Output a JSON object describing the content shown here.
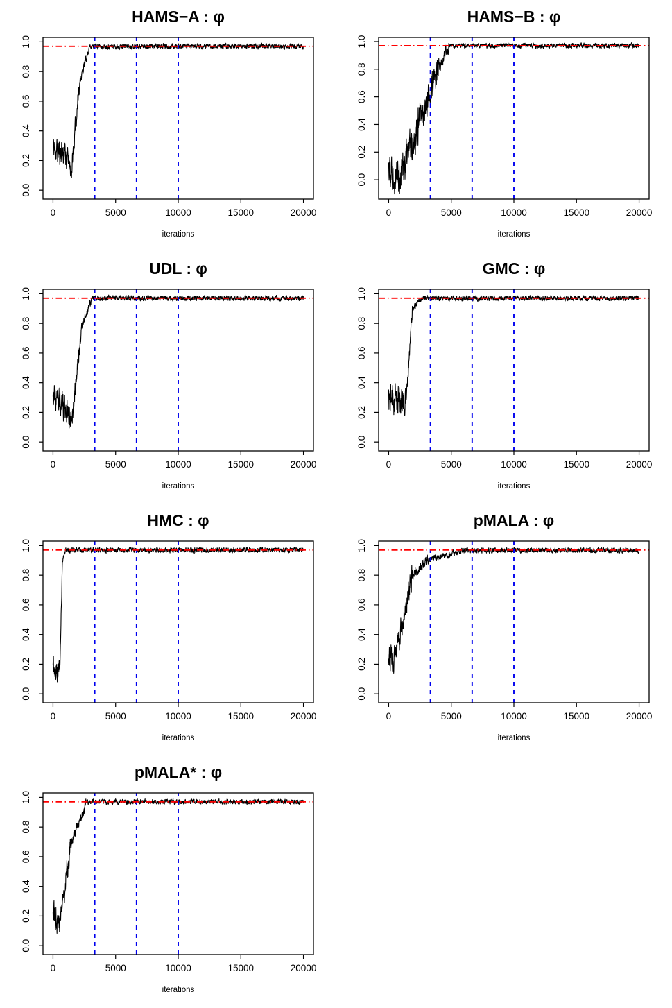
{
  "figure": {
    "description": "MCMC trace plots of parameter phi for seven samplers",
    "phi_symbol": "φ",
    "trace_color": "#000000",
    "reference_line_color": "#ff0000",
    "burnin_line_color": "#0000ee"
  },
  "chart_data": [
    {
      "type": "line",
      "title": "HAMS−A : φ",
      "xlabel": "iterations",
      "ylabel": "",
      "xlim": [
        0,
        20000
      ],
      "ylim": [
        -0.06,
        1.03
      ],
      "xticks": [
        0,
        5000,
        10000,
        15000,
        20000
      ],
      "yticks": [
        0.0,
        0.2,
        0.4,
        0.6,
        0.8,
        1.0
      ],
      "reference_lines": {
        "horizontal": {
          "y": 0.97,
          "color": "#ff0000",
          "style": "dashdot"
        },
        "vertical": {
          "x": [
            3333,
            6667,
            10000
          ],
          "color": "#0000ee",
          "style": "dashed"
        }
      },
      "series": [
        {
          "name": "trace",
          "color": "#000000",
          "seed": 11,
          "segments": [
            [
              0,
              1150,
              0.28,
              0.24,
              0.07
            ],
            [
              1150,
              1450,
              0.24,
              0.1,
              0.04
            ],
            [
              1450,
              2100,
              0.1,
              0.72,
              0.05
            ],
            [
              2100,
              2900,
              0.72,
              0.965,
              0.02
            ],
            [
              2900,
              20000,
              0.97,
              0.97,
              0.012
            ]
          ]
        }
      ]
    },
    {
      "type": "line",
      "title": "HAMS−B : φ",
      "xlabel": "iterations",
      "ylabel": "",
      "xlim": [
        0,
        20000
      ],
      "ylim": [
        -0.14,
        1.03
      ],
      "xticks": [
        0,
        5000,
        10000,
        15000,
        20000
      ],
      "yticks": [
        0.0,
        0.2,
        0.4,
        0.6,
        0.8,
        1.0
      ],
      "reference_lines": {
        "horizontal": {
          "y": 0.97,
          "color": "#ff0000",
          "style": "dashdot"
        },
        "vertical": {
          "x": [
            3333,
            6667,
            10000
          ],
          "color": "#0000ee",
          "style": "dashed"
        }
      },
      "series": [
        {
          "name": "trace",
          "color": "#000000",
          "seed": 22,
          "segments": [
            [
              0,
              900,
              0.1,
              0.03,
              0.1
            ],
            [
              900,
              2600,
              0.03,
              0.45,
              0.1
            ],
            [
              2600,
              4000,
              0.45,
              0.8,
              0.08
            ],
            [
              4000,
              4800,
              0.8,
              0.965,
              0.03
            ],
            [
              4800,
              20000,
              0.97,
              0.97,
              0.012
            ]
          ]
        }
      ]
    },
    {
      "type": "line",
      "title": "UDL : φ",
      "xlabel": "iterations",
      "ylabel": "",
      "xlim": [
        0,
        20000
      ],
      "ylim": [
        -0.06,
        1.03
      ],
      "xticks": [
        0,
        5000,
        10000,
        15000,
        20000
      ],
      "yticks": [
        0.0,
        0.2,
        0.4,
        0.6,
        0.8,
        1.0
      ],
      "reference_lines": {
        "horizontal": {
          "y": 0.97,
          "color": "#ff0000",
          "style": "dashdot"
        },
        "vertical": {
          "x": [
            3333,
            6667,
            10000
          ],
          "color": "#0000ee",
          "style": "dashed"
        }
      },
      "series": [
        {
          "name": "trace",
          "color": "#000000",
          "seed": 33,
          "segments": [
            [
              0,
              600,
              0.3,
              0.26,
              0.07
            ],
            [
              600,
              1500,
              0.26,
              0.14,
              0.06
            ],
            [
              1500,
              2300,
              0.14,
              0.78,
              0.05
            ],
            [
              2300,
              3100,
              0.78,
              0.965,
              0.02
            ],
            [
              3100,
              20000,
              0.97,
              0.97,
              0.012
            ]
          ]
        }
      ]
    },
    {
      "type": "line",
      "title": "GMC : φ",
      "xlabel": "iterations",
      "ylabel": "",
      "xlim": [
        0,
        20000
      ],
      "ylim": [
        -0.06,
        1.03
      ],
      "xticks": [
        0,
        5000,
        10000,
        15000,
        20000
      ],
      "yticks": [
        0.0,
        0.2,
        0.4,
        0.6,
        0.8,
        1.0
      ],
      "reference_lines": {
        "horizontal": {
          "y": 0.97,
          "color": "#ff0000",
          "style": "dashdot"
        },
        "vertical": {
          "x": [
            3333,
            6667,
            10000
          ],
          "color": "#0000ee",
          "style": "dashed"
        }
      },
      "series": [
        {
          "name": "trace",
          "color": "#000000",
          "seed": 44,
          "segments": [
            [
              0,
              1400,
              0.3,
              0.27,
              0.08
            ],
            [
              1400,
              1900,
              0.27,
              0.9,
              0.04
            ],
            [
              1900,
              2600,
              0.9,
              0.968,
              0.015
            ],
            [
              2600,
              20000,
              0.97,
              0.97,
              0.012
            ]
          ]
        }
      ]
    },
    {
      "type": "line",
      "title": "HMC : φ",
      "xlabel": "iterations",
      "ylabel": "",
      "xlim": [
        0,
        20000
      ],
      "ylim": [
        -0.06,
        1.03
      ],
      "xticks": [
        0,
        5000,
        10000,
        15000,
        20000
      ],
      "yticks": [
        0.0,
        0.2,
        0.4,
        0.6,
        0.8,
        1.0
      ],
      "reference_lines": {
        "horizontal": {
          "y": 0.97,
          "color": "#ff0000",
          "style": "dashdot"
        },
        "vertical": {
          "x": [
            3333,
            6667,
            10000
          ],
          "color": "#0000ee",
          "style": "dashed"
        }
      },
      "series": [
        {
          "name": "trace",
          "color": "#000000",
          "seed": 55,
          "segments": [
            [
              0,
              550,
              0.2,
              0.16,
              0.06
            ],
            [
              550,
              750,
              0.16,
              0.9,
              0.03
            ],
            [
              750,
              1000,
              0.9,
              0.968,
              0.012
            ],
            [
              1000,
              20000,
              0.97,
              0.97,
              0.012
            ]
          ]
        }
      ]
    },
    {
      "type": "line",
      "title": "pMALA : φ",
      "xlabel": "iterations",
      "ylabel": "",
      "xlim": [
        0,
        20000
      ],
      "ylim": [
        -0.06,
        1.03
      ],
      "xticks": [
        0,
        5000,
        10000,
        15000,
        20000
      ],
      "yticks": [
        0.0,
        0.2,
        0.4,
        0.6,
        0.8,
        1.0
      ],
      "reference_lines": {
        "horizontal": {
          "y": 0.97,
          "color": "#ff0000",
          "style": "dashdot"
        },
        "vertical": {
          "x": [
            3333,
            6667,
            10000
          ],
          "color": "#0000ee",
          "style": "dashed"
        }
      },
      "series": [
        {
          "name": "trace",
          "color": "#000000",
          "seed": 66,
          "segments": [
            [
              0,
              400,
              0.28,
              0.22,
              0.06
            ],
            [
              400,
              1900,
              0.22,
              0.8,
              0.06
            ],
            [
              1900,
              3200,
              0.8,
              0.91,
              0.025
            ],
            [
              3200,
              6200,
              0.91,
              0.965,
              0.015
            ],
            [
              6200,
              20000,
              0.968,
              0.968,
              0.012
            ]
          ]
        }
      ]
    },
    {
      "type": "line",
      "title": "pMALA* : φ",
      "xlabel": "iterations",
      "ylabel": "",
      "xlim": [
        0,
        20000
      ],
      "ylim": [
        -0.06,
        1.03
      ],
      "xticks": [
        0,
        5000,
        10000,
        15000,
        20000
      ],
      "yticks": [
        0.0,
        0.2,
        0.4,
        0.6,
        0.8,
        1.0
      ],
      "reference_lines": {
        "horizontal": {
          "y": 0.97,
          "color": "#ff0000",
          "style": "dashdot"
        },
        "vertical": {
          "x": [
            3333,
            6667,
            10000
          ],
          "color": "#0000ee",
          "style": "dashed"
        }
      },
      "series": [
        {
          "name": "trace",
          "color": "#000000",
          "seed": 77,
          "segments": [
            [
              0,
              550,
              0.24,
              0.17,
              0.07
            ],
            [
              550,
              1400,
              0.17,
              0.68,
              0.06
            ],
            [
              1400,
              2600,
              0.68,
              0.945,
              0.025
            ],
            [
              2600,
              20000,
              0.97,
              0.97,
              0.012
            ]
          ]
        }
      ]
    }
  ]
}
